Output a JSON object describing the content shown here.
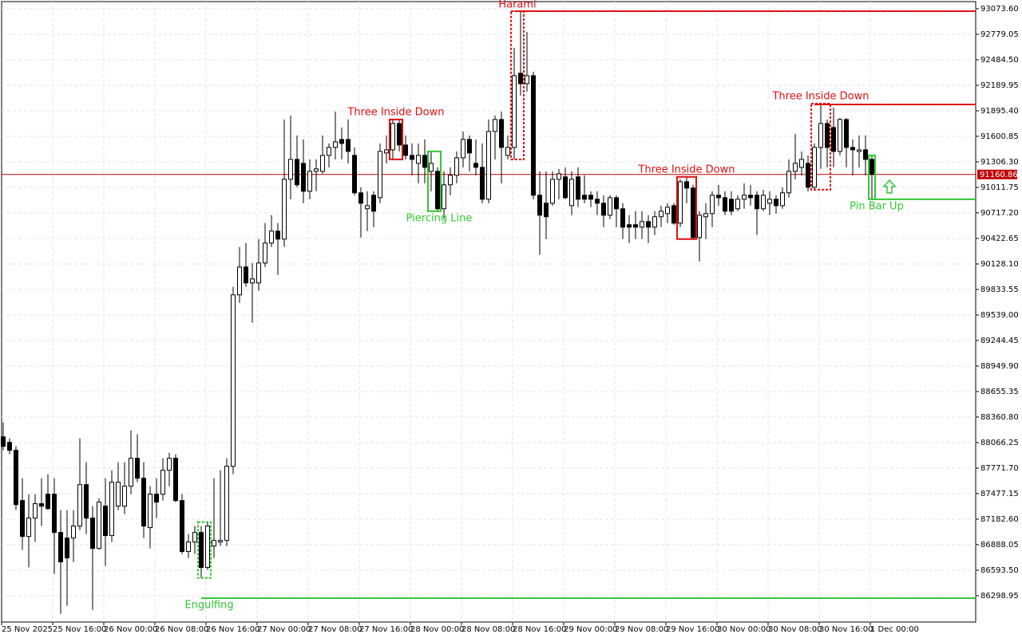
{
  "chart_data": {
    "type": "candlestick",
    "categories": [
      "25 Nov 2025",
      null,
      null,
      null,
      null,
      null,
      null,
      null,
      "25 Nov 16:00",
      null,
      null,
      null,
      null,
      null,
      null,
      null,
      "26 Nov 00:00",
      null,
      null,
      null,
      null,
      null,
      null,
      null,
      "26 Nov 08:00",
      null,
      null,
      null,
      null,
      null,
      null,
      null,
      "26 Nov 16:00",
      null,
      null,
      null,
      null,
      null,
      null,
      null,
      "27 Nov 00:00",
      null,
      null,
      null,
      null,
      null,
      null,
      null,
      "27 Nov 08:00",
      null,
      null,
      null,
      null,
      null,
      null,
      null,
      "27 Nov 16:00",
      null,
      null,
      null,
      null,
      null,
      null,
      null,
      "28 Nov 00:00",
      null,
      null,
      null,
      null,
      null,
      null,
      null,
      "28 Nov 08:00",
      null,
      null,
      null,
      null,
      null,
      null,
      null,
      "28 Nov 16:00",
      null,
      null,
      null,
      null,
      null,
      null,
      null,
      "29 Nov 00:00",
      null,
      null,
      null,
      null,
      null,
      null,
      null,
      "29 Nov 08:00",
      null,
      null,
      null,
      null,
      null,
      null,
      null,
      "29 Nov 16:00",
      null,
      null,
      null,
      null,
      null,
      null,
      null,
      "30 Nov 00:00",
      null,
      null,
      null,
      null,
      null,
      null,
      null,
      "30 Nov 08:00",
      null,
      null,
      null,
      null,
      null,
      null,
      null,
      "30 Nov 16:00",
      null,
      null,
      null,
      null,
      null,
      null,
      null,
      "1 Dec 00:00"
    ],
    "open": [
      88133,
      88069,
      87977,
      87397,
      86983,
      87195,
      87361,
      87471,
      87471,
      87029,
      86965,
      86965,
      87103,
      87581,
      87195,
      86845,
      87333,
      86993,
      87333,
      87333,
      87563,
      87885,
      87655,
      87085,
      87471,
      87471,
      87747,
      87885,
      87397,
      86809,
      86919,
      87029,
      86625,
      86873,
      86919,
      86937,
      87793,
      89771,
      90093,
      89909,
      89909,
      90139,
      90369,
      90507,
      90415,
      91105,
      91335,
      91289,
      90967,
      91197,
      91197,
      91381,
      91473,
      91565,
      91565,
      91381,
      90949,
      90765,
      90921,
      90893,
      91409,
      91445,
      91749,
      91501,
      91381,
      91289,
      91381,
      91197,
      91197,
      90765,
      91041,
      91151,
      91353,
      91565,
      91289,
      91243,
      90875,
      91657,
      91795,
      91381,
      91473,
      92329,
      92209,
      92301,
      90921,
      90829,
      90829,
      91105,
      91133,
      90801,
      91133,
      90921,
      90921,
      90875,
      90829,
      90691,
      90893,
      90765,
      90581,
      90581,
      90553,
      90617,
      90553,
      90673,
      90709,
      90801,
      90599,
      91077,
      91004,
      90433,
      90673,
      90709,
      90921,
      90893,
      90875,
      90765,
      90875,
      90921,
      90921,
      90765,
      90829,
      90875,
      90801,
      90949,
      91197,
      91243,
      91289,
      91013,
      91473,
      91749,
      91703,
      91427,
      91795,
      91473,
      91427,
      91445,
      91335
    ],
    "high": [
      88299,
      88115,
      88023,
      87655,
      87471,
      87471,
      87655,
      87701,
      87655,
      87287,
      87287,
      87287,
      88115,
      87839,
      87333,
      87425,
      87655,
      87747,
      87839,
      87839,
      88207,
      88161,
      87839,
      87563,
      87655,
      87885,
      87949,
      87931,
      87471,
      87011,
      87103,
      87103,
      87149,
      87655,
      87747,
      87885,
      89863,
      90323,
      90369,
      90139,
      90415,
      90599,
      90691,
      90599,
      91795,
      91841,
      91611,
      91565,
      91335,
      91335,
      91611,
      91519,
      91887,
      91703,
      91795,
      91473,
      91013,
      90967,
      90967,
      91519,
      91611,
      91795,
      91795,
      91611,
      91519,
      91519,
      91565,
      91427,
      91243,
      91197,
      91243,
      91427,
      91657,
      91611,
      91565,
      91519,
      91795,
      91841,
      91887,
      91611,
      92623,
      93046,
      92807,
      92347,
      91197,
      91197,
      91197,
      91225,
      91243,
      91197,
      91243,
      91151,
      90967,
      90967,
      90921,
      90921,
      90921,
      90829,
      90691,
      90737,
      90737,
      90691,
      90737,
      90801,
      90829,
      90829,
      91105,
      91133,
      91041,
      90737,
      90829,
      90967,
      91041,
      90967,
      90967,
      90921,
      91059,
      91041,
      90967,
      90985,
      90967,
      90921,
      91013,
      91335,
      91629,
      91427,
      91381,
      91519,
      91979,
      91795,
      91933,
      91813,
      91813,
      91565,
      91611,
      91611,
      91381
    ],
    "low": [
      87977,
      87931,
      87287,
      86827,
      86625,
      86919,
      87103,
      87287,
      86551,
      86091,
      86183,
      86689,
      87057,
      87011,
      86137,
      86827,
      86643,
      86919,
      87287,
      87241,
      87471,
      87609,
      86965,
      86845,
      87195,
      87397,
      87563,
      87379,
      86781,
      86735,
      86781,
      86505,
      86597,
      86735,
      86873,
      86873,
      87701,
      89679,
      89863,
      89449,
      89817,
      90093,
      90323,
      90001,
      90323,
      90875,
      91013,
      90829,
      90875,
      90967,
      91169,
      91243,
      91335,
      91335,
      91289,
      90921,
      90433,
      90507,
      90553,
      90829,
      91289,
      91335,
      91427,
      91335,
      91151,
      91059,
      91059,
      90967,
      90737,
      90645,
      90921,
      91059,
      91243,
      91197,
      91151,
      90829,
      90829,
      91335,
      91059,
      91335,
      91335,
      92071,
      92117,
      90875,
      90231,
      90415,
      90801,
      90875,
      90875,
      90691,
      90783,
      90829,
      90783,
      90691,
      90553,
      90645,
      90553,
      90415,
      90369,
      90415,
      90415,
      90369,
      90461,
      90553,
      90599,
      90581,
      90553,
      90829,
      90415,
      90157,
      90415,
      90553,
      90801,
      90691,
      90691,
      90737,
      90765,
      90801,
      90461,
      90737,
      90691,
      90709,
      90765,
      90893,
      91105,
      91151,
      90967,
      90985,
      91225,
      91243,
      91243,
      91381,
      91243,
      91151,
      91243,
      91151,
      90875
    ],
    "close": [
      88023,
      87977,
      87351,
      86983,
      87195,
      87361,
      87333,
      87305,
      87029,
      86689,
      86735,
      87103,
      87581,
      87195,
      86845,
      87379,
      86993,
      87609,
      87609,
      87563,
      87885,
      87655,
      87103,
      87471,
      87379,
      87747,
      87885,
      87397,
      86809,
      86919,
      87029,
      86625,
      87103,
      86937,
      86937,
      87793,
      89771,
      90093,
      89909,
      89955,
      90139,
      90369,
      90507,
      90415,
      91105,
      91335,
      91041,
      90967,
      91197,
      91225,
      91381,
      91473,
      91537,
      91519,
      91427,
      90949,
      90829,
      90801,
      90737,
      91427,
      91445,
      91749,
      91501,
      91381,
      91335,
      91381,
      91243,
      91289,
      90765,
      91041,
      91151,
      91353,
      91565,
      91409,
      91243,
      90875,
      91657,
      91795,
      91473,
      91473,
      92301,
      92209,
      92301,
      90921,
      90691,
      90673,
      91105,
      91169,
      90893,
      91105,
      90875,
      90875,
      90875,
      90829,
      90691,
      90893,
      90765,
      90553,
      90553,
      90553,
      90617,
      90553,
      90673,
      90737,
      90783,
      90599,
      91077,
      91004,
      90433,
      90691,
      90709,
      90921,
      90893,
      90737,
      90737,
      90875,
      90921,
      90893,
      90765,
      90921,
      90875,
      90801,
      90949,
      91197,
      91289,
      91335,
      91013,
      91473,
      91749,
      91473,
      91427,
      91795,
      91473,
      91445,
      91445,
      91335,
      91160.86
    ],
    "up_color": "#ffffff",
    "down_color": "#000000",
    "current_price": 91160.86,
    "current_price_color": "#c00000",
    "ylim": [
      85995,
      93156
    ],
    "yticks": [
      {
        "value": 93073.6,
        "label": "93073.60"
      },
      92779.05,
      {
        "value": 92484.5,
        "label": "92484.50"
      },
      92189.95,
      {
        "value": 91895.4,
        "label": "91895.40"
      },
      91600.85,
      {
        "value": 91306.3,
        "label": "91306.30"
      },
      91011.75,
      {
        "value": 90717.2,
        "label": "90717.20"
      },
      90422.65,
      {
        "value": 90128.1,
        "label": "90128.10"
      },
      89833.55,
      {
        "value": 89539,
        "label": "89539.00"
      },
      89244.45,
      {
        "value": 88949.9,
        "label": "88949.90"
      },
      88655.35,
      {
        "value": 88360.8,
        "label": "88360.80"
      },
      88066.25,
      {
        "value": 87771.7,
        "label": "87771.70"
      },
      87477.15,
      {
        "value": 87182.6,
        "label": "87182.60"
      },
      86888.05,
      {
        "value": 86593.5,
        "label": "86593.50"
      },
      86298.95
    ],
    "grid": true,
    "patterns": [
      {
        "label": "Harami",
        "color": "#e01010",
        "from": 80,
        "to": 81,
        "level": 93046
      },
      {
        "label": "Three Inside Down",
        "color": "#e01010",
        "from": 61,
        "to": 62
      },
      {
        "label": "Piercing Line",
        "color": "#32c832",
        "from": 67,
        "to": 68
      },
      {
        "label": "Three Inside Down",
        "color": "#e01010",
        "from": 106,
        "to": 108
      },
      {
        "label": "Three Inside Down",
        "color": "#e01010",
        "from": 127,
        "to": 129,
        "level": 91969
      },
      {
        "label": "Engulfing",
        "color": "#32c832",
        "from": 31,
        "to": 32,
        "level": 86271
      },
      {
        "label": "Pin Bar Up",
        "color": "#32c832",
        "from": 136,
        "to": 136,
        "level": 90874,
        "arrow": "up"
      }
    ]
  }
}
